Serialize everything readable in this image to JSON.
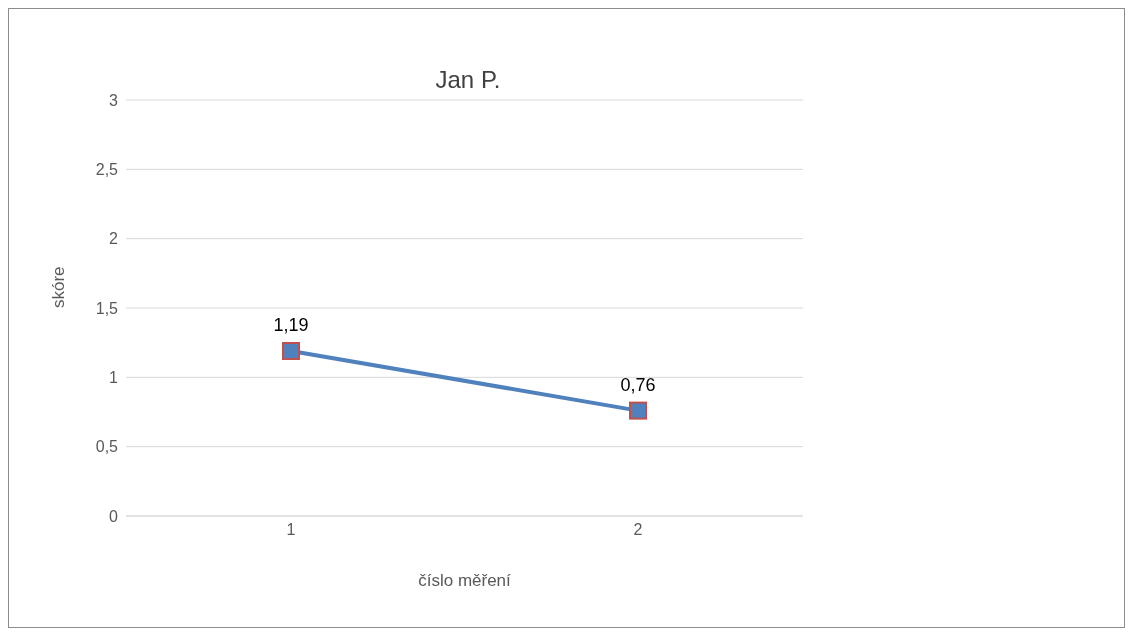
{
  "chart_data": {
    "type": "line",
    "title": "Jan P.",
    "xlabel": "číslo měření",
    "ylabel": "skóre",
    "categories": [
      "1",
      "2"
    ],
    "series": [
      {
        "type": "scatter",
        "color": "#c0504d",
        "marker": "square",
        "values": [
          1.19,
          0.76
        ],
        "value_labels": [
          "1,19",
          "0,76"
        ]
      },
      {
        "color": "#4f81bd",
        "marker": "circle",
        "values": [
          1.19,
          0.76
        ]
      }
    ],
    "ylim": [
      0,
      3
    ],
    "yticks": [
      0,
      {
        "value": 0.5,
        "label": "0,5"
      },
      1,
      {
        "value": 1.5,
        "label": "1,5"
      },
      2,
      {
        "value": 2.5,
        "label": "2,5"
      },
      3
    ],
    "grid": "y"
  }
}
